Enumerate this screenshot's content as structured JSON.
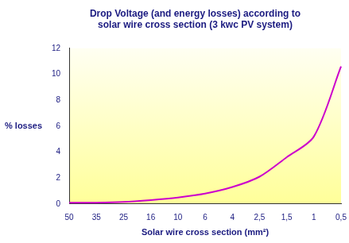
{
  "chart_data": {
    "type": "line",
    "title": [
      "Drop Voltage (and energy losses) according to",
      "solar wire cross section (3 kwc PV system)"
    ],
    "x_label": "Solar wire cross section (mm²)",
    "y_label": "% losses",
    "categories": [
      "50",
      "35",
      "25",
      "16",
      "10",
      "6",
      "4",
      "2,5",
      "1,5",
      "1",
      "0,5"
    ],
    "values": [
      0.1,
      0.1,
      0.15,
      0.3,
      0.5,
      0.8,
      1.3,
      2.1,
      3.6,
      5.2,
      10.6
    ],
    "color": "#cc00cc",
    "marker": "none",
    "ylim": [
      0,
      12
    ],
    "yticks": [
      0,
      2,
      4,
      6,
      8,
      10,
      12
    ],
    "grid": false
  }
}
